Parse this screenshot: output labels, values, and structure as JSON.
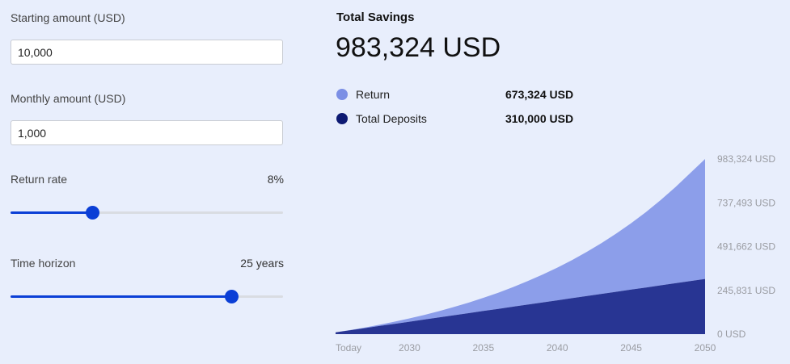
{
  "controls": {
    "starting_label": "Starting amount (USD)",
    "starting_value": "10,000",
    "monthly_label": "Monthly amount (USD)",
    "monthly_value": "1,000",
    "return_label": "Return rate",
    "return_value": "8%",
    "return_fraction": 0.3,
    "horizon_label": "Time horizon",
    "horizon_value": "25 years",
    "horizon_fraction": 0.81
  },
  "summary": {
    "title": "Total Savings",
    "total": "983,324 USD",
    "legend": [
      {
        "label": "Return",
        "value": "673,324 USD",
        "color": "#7b8fe5"
      },
      {
        "label": "Total Deposits",
        "value": "310,000 USD",
        "color": "#0d1a73"
      }
    ]
  },
  "colors": {
    "accent": "#0b3fd6",
    "return_fill": "#8c9eea",
    "deposits_fill": "#283593"
  },
  "chart_data": {
    "type": "area",
    "x_labels": [
      "Today",
      "2030",
      "2035",
      "2040",
      "2045",
      "2050"
    ],
    "y_ticks": [
      "983,324 USD",
      "737,493 USD",
      "491,662 USD",
      "245,831 USD",
      "0 USD"
    ],
    "ylim": [
      0,
      983324
    ],
    "x": [
      2025,
      2026,
      2027,
      2028,
      2029,
      2030,
      2031,
      2032,
      2033,
      2034,
      2035,
      2036,
      2037,
      2038,
      2039,
      2040,
      2041,
      2042,
      2043,
      2044,
      2045,
      2046,
      2047,
      2048,
      2049,
      2050
    ],
    "series": [
      {
        "name": "Total Deposits",
        "values": [
          10000,
          22000,
          34000,
          46000,
          58000,
          70000,
          82000,
          94000,
          106000,
          118000,
          130000,
          142000,
          154000,
          166000,
          178000,
          190000,
          202000,
          214000,
          226000,
          238000,
          250000,
          262000,
          274000,
          286000,
          298000,
          310000
        ]
      },
      {
        "name": "Return",
        "values": [
          10000,
          23300,
          37700,
          53300,
          70100,
          88300,
          108000,
          129200,
          152100,
          176900,
          203700,
          232600,
          263800,
          297600,
          334100,
          373500,
          416000,
          462000,
          511600,
          565200,
          623100,
          685600,
          753100,
          826000,
          904700,
          983324
        ]
      }
    ]
  }
}
